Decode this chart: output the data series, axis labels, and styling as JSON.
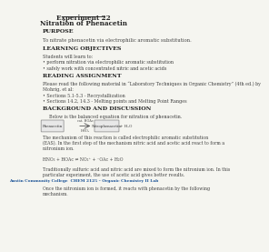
{
  "title1": "Experiment 22",
  "title2": "Nitration of Phenacetin",
  "background_color": "#f5f5f0",
  "sections": [
    {
      "header": "PURPOSE",
      "body_lines": [
        "To nitrate phenacetin via electrophilic aromatic substitution."
      ]
    },
    {
      "header": "LEARNING OBJECTIVES",
      "body_lines": [
        "Students will learn to:",
        "• perform nitration via electrophilic aromatic substitution",
        "• safely work with concentrated nitric and acetic acids"
      ]
    },
    {
      "header": "READING ASSIGNMENT",
      "body_lines": [
        "Please read the following material in “Laboratory Techniques in Organic Chemistry” (4th ed.) by",
        "Mohrig, et al:",
        "• Sections 5.1-5.3 - Recrystallization",
        "• Sections 14.2, 14.3 - Melting points and Melting Point Ranges"
      ]
    },
    {
      "header": "BACKGROUND AND DISCUSSION",
      "body_lines": [
        "Below is the balanced equation for nitration of phenacetin."
      ]
    }
  ],
  "footer_lines": [
    "The mechanism of this reaction is called electrophilic aromatic substitution",
    "(EAS). In the first step of the mechanism nitric acid and acetic acid react to form a",
    "nitronium ion.",
    "",
    "HNO₃ + HOAc ⇌ NO₂⁺ + ⁻OAc + H₂O",
    "",
    "Traditionally sulfuric acid and nitric acid are mixed to form the nitronium ion. In this",
    "particular experiment, the use of acetic acid gives better results."
  ],
  "college_line": "Austin Community College  CHEM 2125 – Organic Chemistry II Lab",
  "end_lines": [
    "Once the nitronium ion is formed, it reacts with phenacetin by the following",
    "mechanism."
  ]
}
